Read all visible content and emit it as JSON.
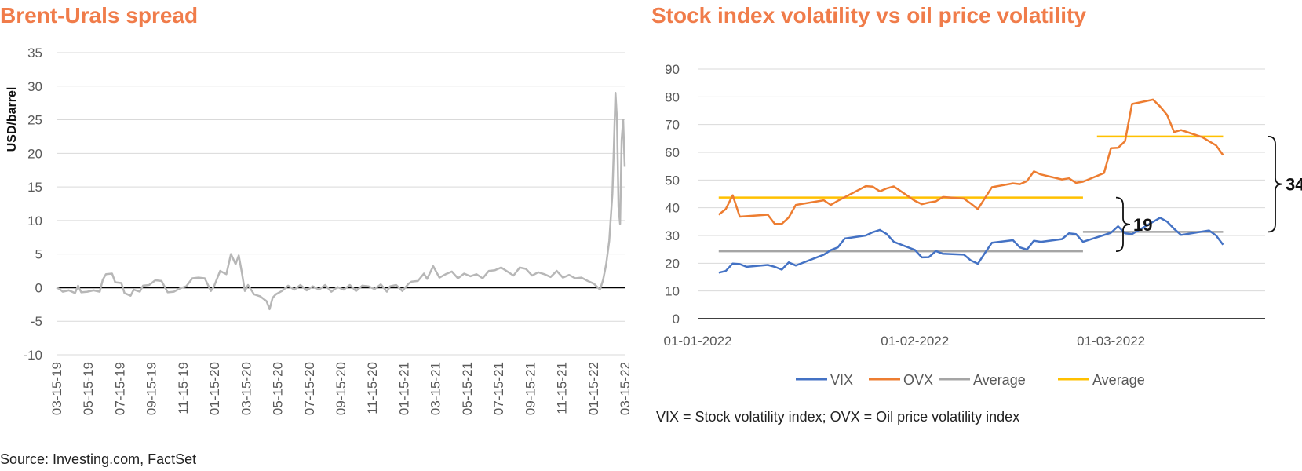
{
  "chart_data": [
    {
      "type": "line",
      "title": "Brent-Urals spread",
      "ylabel": "USD/barrel",
      "ylim": [
        -10,
        35
      ],
      "yticks": [
        35,
        30,
        25,
        20,
        15,
        10,
        5,
        0,
        -5,
        -10
      ],
      "xtick_labels": [
        "03-15-19",
        "05-15-19",
        "07-15-19",
        "09-15-19",
        "11-15-19",
        "01-15-20",
        "03-15-20",
        "05-15-20",
        "07-15-20",
        "09-15-20",
        "11-15-20",
        "01-15-21",
        "03-15-21",
        "05-15-21",
        "07-15-21",
        "09-15-21",
        "11-15-21",
        "01-15-22",
        "03-15-22"
      ],
      "line_color": "#B7B7B7",
      "series": [
        {
          "values": [
            [
              0.0,
              0.0
            ],
            [
              0.1,
              -0.2
            ],
            [
              0.2,
              -0.6
            ],
            [
              0.4,
              -0.4
            ],
            [
              0.6,
              -0.8
            ],
            [
              0.7,
              0.3
            ],
            [
              0.8,
              -0.7
            ],
            [
              1.0,
              -0.6
            ],
            [
              1.2,
              -0.4
            ],
            [
              1.4,
              -0.6
            ],
            [
              1.5,
              1.2
            ],
            [
              1.6,
              2.0
            ],
            [
              1.8,
              2.1
            ],
            [
              1.9,
              0.8
            ],
            [
              2.1,
              0.7
            ],
            [
              2.2,
              -0.8
            ],
            [
              2.4,
              -1.2
            ],
            [
              2.5,
              -0.3
            ],
            [
              2.7,
              -0.6
            ],
            [
              2.8,
              0.3
            ],
            [
              3.0,
              0.4
            ],
            [
              3.2,
              1.1
            ],
            [
              3.4,
              1.0
            ],
            [
              3.6,
              -0.7
            ],
            [
              3.8,
              -0.6
            ],
            [
              4.0,
              -0.1
            ],
            [
              4.2,
              0.2
            ],
            [
              4.4,
              1.4
            ],
            [
              4.6,
              1.5
            ],
            [
              4.8,
              1.4
            ],
            [
              5.0,
              -0.5
            ],
            [
              5.1,
              0.2
            ],
            [
              5.3,
              2.5
            ],
            [
              5.5,
              2.0
            ],
            [
              5.65,
              5.0
            ],
            [
              5.8,
              3.5
            ],
            [
              5.9,
              4.8
            ],
            [
              6.0,
              2.3
            ],
            [
              6.1,
              -0.5
            ],
            [
              6.2,
              0.4
            ],
            [
              6.4,
              -1.0
            ],
            [
              6.6,
              -1.3
            ],
            [
              6.8,
              -2.0
            ],
            [
              6.9,
              -3.2
            ],
            [
              7.0,
              -1.5
            ],
            [
              7.1,
              -1.0
            ],
            [
              7.3,
              -0.5
            ],
            [
              7.5,
              0.3
            ],
            [
              7.7,
              -0.3
            ],
            [
              7.9,
              0.4
            ],
            [
              8.1,
              -0.4
            ],
            [
              8.3,
              0.2
            ],
            [
              8.5,
              -0.3
            ],
            [
              8.7,
              0.4
            ],
            [
              8.9,
              -0.6
            ],
            [
              9.1,
              0.1
            ],
            [
              9.3,
              -0.3
            ],
            [
              9.5,
              0.4
            ],
            [
              9.7,
              -0.5
            ],
            [
              9.9,
              0.3
            ],
            [
              10.1,
              0.2
            ],
            [
              10.3,
              -0.2
            ],
            [
              10.5,
              0.5
            ],
            [
              10.7,
              -0.6
            ],
            [
              10.8,
              0.2
            ],
            [
              11.0,
              0.4
            ],
            [
              11.2,
              -0.5
            ],
            [
              11.4,
              0.6
            ],
            [
              11.5,
              0.9
            ],
            [
              11.7,
              1.0
            ],
            [
              11.9,
              2.1
            ],
            [
              12.0,
              1.3
            ],
            [
              12.2,
              3.2
            ],
            [
              12.4,
              1.5
            ],
            [
              12.6,
              2.0
            ],
            [
              12.8,
              2.4
            ],
            [
              13.0,
              1.4
            ],
            [
              13.2,
              2.1
            ],
            [
              13.4,
              1.7
            ],
            [
              13.6,
              2.0
            ],
            [
              13.8,
              1.4
            ],
            [
              14.0,
              2.5
            ],
            [
              14.2,
              2.6
            ],
            [
              14.4,
              3.0
            ],
            [
              14.6,
              2.4
            ],
            [
              14.8,
              1.8
            ],
            [
              15.0,
              3.0
            ],
            [
              15.2,
              2.8
            ],
            [
              15.4,
              1.8
            ],
            [
              15.6,
              2.3
            ],
            [
              15.8,
              2.0
            ],
            [
              16.0,
              1.6
            ],
            [
              16.2,
              2.5
            ],
            [
              16.4,
              1.5
            ],
            [
              16.6,
              1.9
            ],
            [
              16.8,
              1.4
            ],
            [
              17.0,
              1.5
            ],
            [
              17.2,
              1.0
            ],
            [
              17.4,
              0.6
            ],
            [
              17.6,
              -0.3
            ],
            [
              17.7,
              1.2
            ],
            [
              17.8,
              3.5
            ],
            [
              17.9,
              7.0
            ],
            [
              18.0,
              14.0
            ],
            [
              18.05,
              21.0
            ],
            [
              18.1,
              29.0
            ],
            [
              18.15,
              25.0
            ],
            [
              18.2,
              12.0
            ],
            [
              18.25,
              9.5
            ],
            [
              18.3,
              22.0
            ],
            [
              18.35,
              25.0
            ],
            [
              18.4,
              18.0
            ]
          ]
        }
      ]
    },
    {
      "type": "line",
      "title": "Stock index volatility vs oil price volatility",
      "ylim": [
        0,
        90
      ],
      "yticks": [
        90,
        80,
        70,
        60,
        50,
        40,
        30,
        20,
        10,
        0
      ],
      "xtick_labels": [
        "01-01-2022",
        "01-02-2022",
        "01-03-2022"
      ],
      "xrange_days": [
        0,
        81
      ],
      "series": [
        {
          "name": "VIX",
          "color": "#4472C4",
          "values": [
            [
              3,
              16.6
            ],
            [
              4,
              17.2
            ],
            [
              5,
              19.9
            ],
            [
              6,
              19.7
            ],
            [
              7,
              18.7
            ],
            [
              10,
              19.4
            ],
            [
              11,
              18.7
            ],
            [
              12,
              17.7
            ],
            [
              13,
              20.3
            ],
            [
              14,
              19.2
            ],
            [
              18,
              23.1
            ],
            [
              19,
              24.7
            ],
            [
              20,
              25.7
            ],
            [
              21,
              28.9
            ],
            [
              24,
              30.0
            ],
            [
              25,
              31.2
            ],
            [
              26,
              32.0
            ],
            [
              27,
              30.5
            ],
            [
              28,
              27.7
            ],
            [
              31,
              24.8
            ],
            [
              32,
              22.1
            ],
            [
              33,
              22.2
            ],
            [
              34,
              24.4
            ],
            [
              35,
              23.4
            ],
            [
              38,
              23.1
            ],
            [
              39,
              21.0
            ],
            [
              40,
              19.8
            ],
            [
              41,
              23.7
            ],
            [
              42,
              27.4
            ],
            [
              45,
              28.3
            ],
            [
              46,
              25.7
            ],
            [
              47,
              24.9
            ],
            [
              48,
              28.1
            ],
            [
              49,
              27.7
            ],
            [
              52,
              28.7
            ],
            [
              53,
              30.8
            ],
            [
              54,
              30.5
            ],
            [
              55,
              27.7
            ],
            [
              59,
              31.0
            ],
            [
              60,
              33.3
            ],
            [
              61,
              30.8
            ],
            [
              62,
              30.5
            ],
            [
              66,
              36.4
            ],
            [
              67,
              35.0
            ],
            [
              68,
              32.4
            ],
            [
              69,
              30.2
            ],
            [
              73,
              31.8
            ],
            [
              74,
              30.0
            ],
            [
              75,
              26.7
            ]
          ]
        },
        {
          "name": "OVX",
          "color": "#ED7D31",
          "values": [
            [
              3,
              37.5
            ],
            [
              4,
              39.5
            ],
            [
              5,
              44.5
            ],
            [
              6,
              36.8
            ],
            [
              10,
              37.5
            ],
            [
              11,
              34.2
            ],
            [
              12,
              34.2
            ],
            [
              13,
              36.5
            ],
            [
              14,
              41.0
            ],
            [
              18,
              42.7
            ],
            [
              19,
              41.0
            ],
            [
              20,
              42.5
            ],
            [
              24,
              47.8
            ],
            [
              25,
              47.6
            ],
            [
              26,
              45.9
            ],
            [
              27,
              47.0
            ],
            [
              28,
              47.7
            ],
            [
              31,
              42.5
            ],
            [
              32,
              41.3
            ],
            [
              33,
              41.9
            ],
            [
              34,
              42.3
            ],
            [
              35,
              43.9
            ],
            [
              38,
              43.3
            ],
            [
              39,
              41.5
            ],
            [
              40,
              39.5
            ],
            [
              41,
              43.5
            ],
            [
              42,
              47.4
            ],
            [
              45,
              48.8
            ],
            [
              46,
              48.5
            ],
            [
              47,
              49.6
            ],
            [
              48,
              53.1
            ],
            [
              49,
              52.0
            ],
            [
              52,
              50.2
            ],
            [
              53,
              50.6
            ],
            [
              54,
              49.0
            ],
            [
              55,
              49.4
            ],
            [
              58,
              52.5
            ],
            [
              59,
              61.5
            ],
            [
              60,
              61.6
            ],
            [
              61,
              64.0
            ],
            [
              62,
              77.4
            ],
            [
              65,
              79.0
            ],
            [
              66,
              76.5
            ],
            [
              67,
              73.5
            ],
            [
              68,
              67.3
            ],
            [
              69,
              68.0
            ],
            [
              72,
              65.5
            ],
            [
              73,
              64.0
            ],
            [
              74,
              62.5
            ],
            [
              75,
              59.0
            ]
          ]
        },
        {
          "name": "Average",
          "color": "#A5A5A5",
          "segments": [
            {
              "x": [
                3,
                55
              ],
              "y": 24.3
            },
            {
              "x": [
                55,
                75
              ],
              "y": 31.3
            }
          ]
        },
        {
          "name": "Average",
          "color": "#FFC000",
          "segments": [
            {
              "x": [
                3,
                55
              ],
              "y": 43.7
            },
            {
              "x": [
                57,
                75
              ],
              "y": 65.7
            }
          ]
        }
      ],
      "annotations": [
        {
          "label": "19",
          "from": 24.3,
          "to": 43.7
        },
        {
          "label": "34",
          "from": 31.3,
          "to": 65.7
        }
      ],
      "legend_position": "bottom"
    }
  ],
  "left_chart": {
    "title": "Brent-Urals spread",
    "ylabel": "USD/barrel"
  },
  "right_chart": {
    "title": "Stock index volatility vs oil price volatility",
    "note": "VIX = Stock volatility index; OVX = Oil price volatility index"
  },
  "footer": {
    "source": "Source: Investing.com, FactSet"
  }
}
